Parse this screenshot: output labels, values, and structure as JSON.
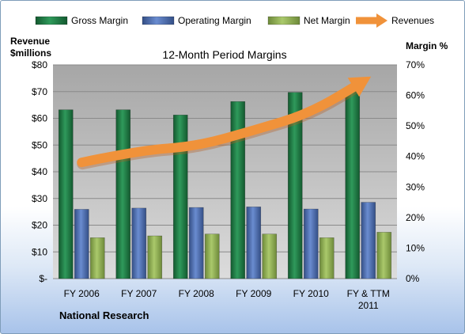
{
  "chart_data": {
    "type": "bar",
    "title": "12-Month Period Margins",
    "left_axis_title_line1": "Revenue",
    "left_axis_title_line2": "$millions",
    "right_axis_title": "Margin %",
    "source_label": "National Research",
    "categories": [
      [
        "FY 2006"
      ],
      [
        "FY 2007"
      ],
      [
        "FY 2008"
      ],
      [
        "FY 2009"
      ],
      [
        "FY 2010"
      ],
      [
        "FY & TTM",
        "2011"
      ]
    ],
    "left_ylim": [
      0,
      80
    ],
    "left_ticks": [
      {
        "value": 0,
        "label": "$-"
      },
      {
        "value": 10,
        "label": "$10"
      },
      {
        "value": 20,
        "label": "$20"
      },
      {
        "value": 30,
        "label": "$30"
      },
      {
        "value": 40,
        "label": "$40"
      },
      {
        "value": 50,
        "label": "$50"
      },
      {
        "value": 60,
        "label": "$60"
      },
      {
        "value": 70,
        "label": "$70"
      },
      {
        "value": 80,
        "label": "$80"
      }
    ],
    "right_ylim": [
      0,
      70
    ],
    "right_ticks": [
      {
        "value": 0,
        "label": "0%"
      },
      {
        "value": 10,
        "label": "10%"
      },
      {
        "value": 20,
        "label": "20%"
      },
      {
        "value": 30,
        "label": "30%"
      },
      {
        "value": 40,
        "label": "40%"
      },
      {
        "value": 50,
        "label": "50%"
      },
      {
        "value": 60,
        "label": "60%"
      },
      {
        "value": 70,
        "label": "70%"
      }
    ],
    "grid": true,
    "legend_position": "top",
    "series": [
      {
        "name": "Gross Margin",
        "axis": "right",
        "kind": "bar",
        "color": "#1e7a44",
        "values": [
          55.3,
          55.3,
          53.6,
          58.0,
          61.0,
          62.0
        ]
      },
      {
        "name": "Operating Margin",
        "axis": "right",
        "kind": "bar",
        "color": "#4a6fb5",
        "values": [
          22.7,
          23.1,
          23.3,
          23.5,
          22.8,
          25.0
        ]
      },
      {
        "name": "Net Margin",
        "axis": "right",
        "kind": "bar",
        "color": "#93b356",
        "values": [
          13.4,
          14.0,
          14.6,
          14.6,
          13.4,
          15.2
        ]
      },
      {
        "name": "Revenues",
        "axis": "left",
        "kind": "line",
        "color": "#f0923a",
        "values": [
          43.5,
          48.0,
          49.5,
          55.5,
          62.0,
          75.0
        ]
      }
    ]
  }
}
